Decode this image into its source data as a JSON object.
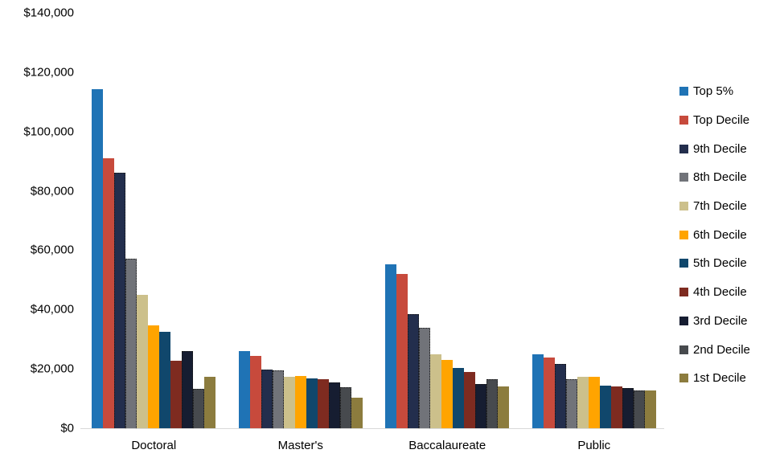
{
  "chart_data": {
    "type": "bar",
    "title": "",
    "xlabel": "",
    "ylabel": "",
    "grid": false,
    "legend_position": "right",
    "ylim": [
      0,
      140000
    ],
    "y_ticks": [
      "$140,000",
      "$120,000",
      "$100,000",
      "$80,000",
      "$60,000",
      "$40,000",
      "$20,000",
      "$0"
    ],
    "categories": [
      "Doctoral",
      "Master's",
      "Baccalaureate",
      "Public"
    ],
    "series": [
      {
        "name": "Top 5%",
        "color": "#1f73b5",
        "dotted": false,
        "values": [
          114200,
          26100,
          55200,
          24800
        ]
      },
      {
        "name": "Top Decile",
        "color": "#c74a3c",
        "dotted": false,
        "values": [
          91100,
          24500,
          52000,
          23700
        ]
      },
      {
        "name": "9th Decile",
        "color": "#232e4d",
        "dotted": true,
        "values": [
          86100,
          19800,
          38500,
          21700
        ]
      },
      {
        "name": "8th Decile",
        "color": "#717379",
        "dotted": true,
        "values": [
          57200,
          19500,
          33800,
          16400
        ]
      },
      {
        "name": "7th Decile",
        "color": "#ccc08b",
        "dotted": false,
        "values": [
          44900,
          17300,
          25000,
          17400
        ]
      },
      {
        "name": "6th Decile",
        "color": "#ffa400",
        "dotted": false,
        "values": [
          34700,
          17700,
          23000,
          17300
        ]
      },
      {
        "name": "5th Decile",
        "color": "#10476c",
        "dotted": false,
        "values": [
          32400,
          16900,
          20400,
          14400
        ]
      },
      {
        "name": "4th Decile",
        "color": "#7e2b20",
        "dotted": false,
        "values": [
          22700,
          16400,
          19000,
          14000
        ]
      },
      {
        "name": "3rd Decile",
        "color": "#161d31",
        "dotted": true,
        "values": [
          25900,
          15400,
          14800,
          13500
        ]
      },
      {
        "name": "2nd Decile",
        "color": "#474a4e",
        "dotted": true,
        "values": [
          13300,
          13900,
          16500,
          12600
        ]
      },
      {
        "name": "1st Decile",
        "color": "#8c7c3e",
        "dotted": false,
        "values": [
          17400,
          10200,
          14200,
          12600
        ]
      }
    ],
    "axis_color": "#d9d9d9",
    "text_color": "#000000"
  }
}
